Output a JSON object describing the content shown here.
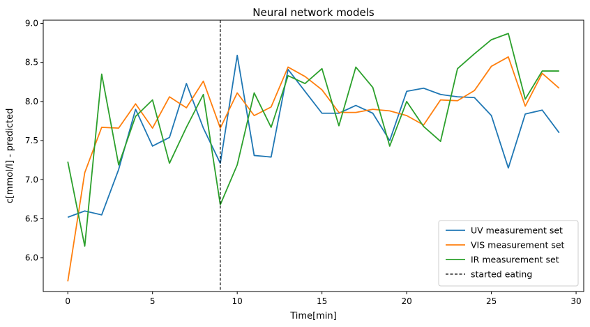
{
  "chart_data": {
    "type": "line",
    "title": "Neural network models",
    "xlabel": "Time[min]",
    "ylabel": "c[mmol/l] - predicted",
    "xlim": [
      -1.45,
      30.45
    ],
    "ylim": [
      5.57,
      9.04
    ],
    "xticks": [
      0,
      5,
      10,
      15,
      20,
      25,
      30
    ],
    "xtick_labels": [
      "0",
      "5",
      "10",
      "15",
      "20",
      "25",
      "30"
    ],
    "yticks": [
      6.0,
      6.5,
      7.0,
      7.5,
      8.0,
      8.5,
      9.0
    ],
    "ytick_labels": [
      "6.0",
      "6.5",
      "7.0",
      "7.5",
      "8.0",
      "8.5",
      "9.0"
    ],
    "grid": false,
    "legend_position": "lower right",
    "x": [
      0,
      1,
      2,
      3,
      4,
      5,
      6,
      7,
      8,
      9,
      10,
      11,
      12,
      13,
      14,
      15,
      16,
      17,
      18,
      19,
      20,
      21,
      22,
      23,
      24,
      25,
      26,
      27,
      28,
      29
    ],
    "series": [
      {
        "name": "UV measurement set",
        "color": "#1f77b4",
        "values": [
          6.52,
          6.6,
          6.55,
          7.13,
          7.9,
          7.43,
          7.54,
          8.23,
          7.66,
          7.21,
          8.59,
          7.31,
          7.29,
          8.41,
          8.13,
          7.85,
          7.85,
          7.95,
          7.85,
          7.5,
          8.13,
          8.17,
          8.09,
          8.06,
          8.05,
          7.82,
          7.15,
          7.84,
          7.89,
          7.6
        ]
      },
      {
        "name": "VIS measurement set",
        "color": "#ff7f0e",
        "values": [
          5.7,
          7.09,
          7.67,
          7.66,
          7.97,
          7.66,
          8.06,
          7.92,
          8.26,
          7.66,
          8.11,
          7.82,
          7.93,
          8.44,
          8.32,
          8.15,
          7.86,
          7.86,
          7.9,
          7.88,
          7.82,
          7.7,
          8.02,
          8.01,
          8.14,
          8.45,
          8.57,
          7.94,
          8.36,
          8.17
        ]
      },
      {
        "name": "IR measurement set",
        "color": "#2ca02c",
        "values": [
          7.23,
          6.15,
          8.35,
          7.19,
          7.81,
          8.02,
          7.21,
          7.67,
          8.09,
          6.68,
          7.19,
          8.11,
          7.67,
          8.33,
          8.23,
          8.42,
          7.69,
          8.44,
          8.18,
          7.43,
          8.0,
          7.68,
          7.49,
          8.42,
          8.61,
          8.79,
          8.87,
          8.03,
          8.39,
          8.39
        ]
      }
    ],
    "vline": {
      "x": 9,
      "name": "started eating",
      "color": "#000000",
      "style": "dashed"
    }
  }
}
